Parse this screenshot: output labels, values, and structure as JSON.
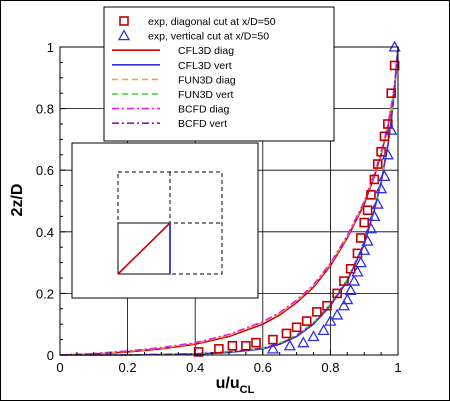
{
  "chart_data": {
    "type": "line",
    "title": "",
    "xlabel": "u/u",
    "xlabel_sub": "CL",
    "ylabel": "2z/D",
    "xlim": [
      0,
      1
    ],
    "ylim": [
      0,
      1
    ],
    "xticks": [
      "0",
      "0.2",
      "0.4",
      "0.6",
      "0.8",
      "1"
    ],
    "yticks": [
      "0",
      "0.2",
      "0.4",
      "0.6",
      "0.8",
      "1"
    ],
    "grid": true,
    "legend_position": "top-center",
    "series": [
      {
        "name": "exp, diagonal cut at x/D=50",
        "kind": "marker",
        "marker": "square",
        "color": "#c00000",
        "x": [
          0.41,
          0.47,
          0.51,
          0.55,
          0.58,
          0.63,
          0.67,
          0.7,
          0.73,
          0.76,
          0.79,
          0.82,
          0.84,
          0.86,
          0.88,
          0.89,
          0.9,
          0.91,
          0.92,
          0.93,
          0.94,
          0.95,
          0.96,
          0.97,
          0.98,
          0.99
        ],
        "y": [
          0.01,
          0.02,
          0.03,
          0.03,
          0.04,
          0.05,
          0.07,
          0.09,
          0.11,
          0.14,
          0.16,
          0.2,
          0.24,
          0.28,
          0.33,
          0.38,
          0.43,
          0.47,
          0.52,
          0.57,
          0.62,
          0.66,
          0.71,
          0.75,
          0.85,
          0.94
        ]
      },
      {
        "name": "exp, vertical cut at x/D=50",
        "kind": "marker",
        "marker": "triangle",
        "color": "#3030e0",
        "x": [
          0.63,
          0.68,
          0.72,
          0.75,
          0.78,
          0.8,
          0.82,
          0.84,
          0.85,
          0.86,
          0.87,
          0.88,
          0.89,
          0.9,
          0.91,
          0.92,
          0.93,
          0.94,
          0.95,
          0.96,
          0.97,
          0.98,
          0.99
        ],
        "y": [
          0.02,
          0.03,
          0.04,
          0.06,
          0.08,
          0.11,
          0.13,
          0.16,
          0.18,
          0.21,
          0.24,
          0.27,
          0.3,
          0.34,
          0.37,
          0.41,
          0.45,
          0.49,
          0.54,
          0.58,
          0.65,
          0.73,
          1.0
        ]
      },
      {
        "name": "CFL3D diag",
        "kind": "line",
        "dash": "solid",
        "color": "#cc0000",
        "x": [
          0,
          0.1,
          0.2,
          0.3,
          0.4,
          0.5,
          0.6,
          0.65,
          0.7,
          0.75,
          0.8,
          0.85,
          0.9,
          0.93,
          0.95,
          0.97,
          0.98,
          0.99,
          1.0
        ],
        "y": [
          0,
          0.003,
          0.01,
          0.02,
          0.035,
          0.06,
          0.1,
          0.13,
          0.17,
          0.22,
          0.29,
          0.38,
          0.49,
          0.58,
          0.65,
          0.74,
          0.8,
          0.87,
          1.0
        ]
      },
      {
        "name": "CFL3D vert",
        "kind": "line",
        "dash": "solid",
        "color": "#3030dd",
        "x": [
          0,
          0.2,
          0.4,
          0.5,
          0.6,
          0.65,
          0.7,
          0.75,
          0.8,
          0.85,
          0.9,
          0.93,
          0.95,
          0.97,
          0.98,
          0.99,
          1.0
        ],
        "y": [
          0,
          0.0,
          0.003,
          0.008,
          0.02,
          0.035,
          0.06,
          0.1,
          0.16,
          0.24,
          0.36,
          0.47,
          0.56,
          0.68,
          0.76,
          0.86,
          1.0
        ]
      },
      {
        "name": "FUN3D diag",
        "kind": "line",
        "dash": "dashed",
        "color": "#f0a050",
        "x": [
          0,
          0.1,
          0.2,
          0.3,
          0.4,
          0.5,
          0.6,
          0.65,
          0.7,
          0.75,
          0.8,
          0.85,
          0.9,
          0.93,
          0.95,
          0.97,
          0.98,
          0.99,
          1.0
        ],
        "y": [
          0,
          0.004,
          0.012,
          0.022,
          0.038,
          0.064,
          0.105,
          0.135,
          0.175,
          0.225,
          0.295,
          0.385,
          0.495,
          0.585,
          0.655,
          0.745,
          0.805,
          0.875,
          1.0
        ]
      },
      {
        "name": "FUN3D vert",
        "kind": "line",
        "dash": "dashed",
        "color": "#40d040",
        "x": [
          0,
          0.2,
          0.4,
          0.5,
          0.6,
          0.65,
          0.7,
          0.75,
          0.8,
          0.85,
          0.9,
          0.93,
          0.95,
          0.97,
          0.98,
          0.99,
          1.0
        ],
        "y": [
          0,
          0.0,
          0.004,
          0.01,
          0.022,
          0.038,
          0.065,
          0.105,
          0.165,
          0.245,
          0.365,
          0.475,
          0.565,
          0.685,
          0.765,
          0.865,
          1.0
        ]
      },
      {
        "name": "BCFD diag",
        "kind": "line",
        "dash": "dashdot",
        "color": "#e020e0",
        "x": [
          0,
          0.1,
          0.2,
          0.3,
          0.4,
          0.5,
          0.6,
          0.65,
          0.7,
          0.75,
          0.8,
          0.85,
          0.9,
          0.93,
          0.95,
          0.97,
          0.98,
          0.99,
          1.0
        ],
        "y": [
          0,
          0.005,
          0.013,
          0.024,
          0.04,
          0.067,
          0.108,
          0.138,
          0.178,
          0.228,
          0.298,
          0.388,
          0.498,
          0.588,
          0.658,
          0.748,
          0.808,
          0.878,
          1.0
        ]
      },
      {
        "name": "BCFD vert",
        "kind": "line",
        "dash": "dashdot",
        "color": "#8020c0",
        "x": [
          0,
          0.2,
          0.4,
          0.5,
          0.6,
          0.65,
          0.7,
          0.75,
          0.8,
          0.85,
          0.9,
          0.93,
          0.95,
          0.97,
          0.98,
          0.99,
          1.0
        ],
        "y": [
          0,
          0.0,
          0.004,
          0.01,
          0.022,
          0.036,
          0.062,
          0.102,
          0.162,
          0.242,
          0.362,
          0.472,
          0.562,
          0.682,
          0.762,
          0.862,
          1.0
        ]
      }
    ],
    "inset": {
      "description_lines": [
        "dashed quadrant grid",
        "diagonal cut (red)",
        "vertical cut (blue)"
      ],
      "diag_color": "#cc0000",
      "vert_color": "#3030dd"
    }
  }
}
